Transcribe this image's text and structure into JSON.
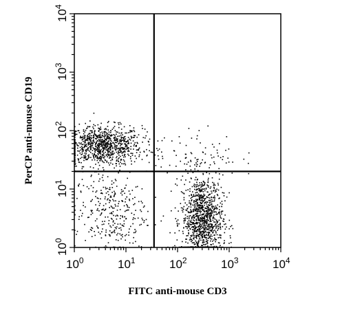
{
  "chart_data": {
    "type": "scatter",
    "title": "",
    "xlabel": "FITC anti-mouse CD3",
    "ylabel": "PerCP anti-mouse CD19",
    "xscale": "log",
    "yscale": "log",
    "xlim": [
      1,
      10000
    ],
    "ylim": [
      1,
      10000
    ],
    "x_ticks": [
      {
        "base": "10",
        "exp": "0",
        "value": 1
      },
      {
        "base": "10",
        "exp": "1",
        "value": 10
      },
      {
        "base": "10",
        "exp": "2",
        "value": 100
      },
      {
        "base": "10",
        "exp": "3",
        "value": 1000
      },
      {
        "base": "10",
        "exp": "4",
        "value": 10000
      }
    ],
    "y_ticks": [
      {
        "base": "10",
        "exp": "0",
        "value": 1
      },
      {
        "base": "10",
        "exp": "1",
        "value": 10
      },
      {
        "base": "10",
        "exp": "2",
        "value": 100
      },
      {
        "base": "10",
        "exp": "3",
        "value": 1000
      },
      {
        "base": "10",
        "exp": "4",
        "value": 10000
      }
    ],
    "quadrant_gates": {
      "x": 35,
      "y": 20
    },
    "populations": [
      {
        "label": "CD19+ CD3-",
        "x_center": 3.5,
        "y_center": 55,
        "x_spread": 0.38,
        "y_spread": 0.17,
        "count": 900
      },
      {
        "label": "CD3+ CD19-",
        "x_center": 300,
        "y_center": 3,
        "x_spread": 0.2,
        "y_spread": 0.38,
        "count": 1100
      },
      {
        "label": "CD3- CD19-",
        "x_center": 5,
        "y_center": 4,
        "x_spread": 0.35,
        "y_spread": 0.35,
        "count": 320
      },
      {
        "label": "CD3+ CD19+",
        "x_center": 200,
        "y_center": 40,
        "x_spread": 0.45,
        "y_spread": 0.2,
        "count": 90
      }
    ],
    "grid": false,
    "legend": "none"
  }
}
